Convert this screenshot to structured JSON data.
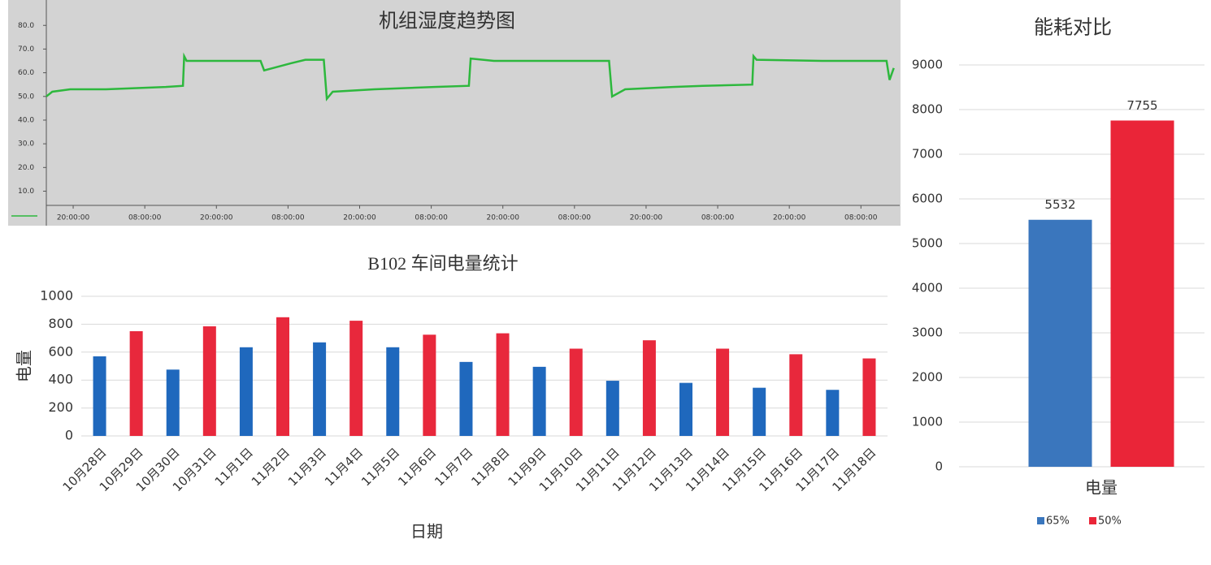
{
  "chart_data": [
    {
      "type": "line",
      "title": "机组湿度趋势图",
      "color": "#2db83d",
      "x": [
        0,
        1,
        4,
        10,
        20,
        22.9,
        23.1,
        23.5,
        30,
        35.9,
        36.5,
        38,
        41,
        43.4,
        46.5,
        47,
        48,
        55,
        65,
        70.8,
        71.1,
        75,
        85,
        94.3,
        94.8,
        97,
        105,
        110,
        118.3,
        118.5,
        119,
        130,
        140.8,
        141.3,
        142
      ],
      "values": [
        50,
        52,
        53,
        53,
        54,
        54.5,
        67,
        65,
        65,
        65,
        61,
        62,
        64,
        65.5,
        65.5,
        49,
        52,
        53,
        54,
        54.5,
        66,
        65,
        65,
        65,
        50,
        53,
        54,
        54.5,
        55,
        67,
        65.5,
        65,
        65,
        57,
        62
      ],
      "xlim": [
        0,
        143
      ],
      "xticks": [
        {
          "value": 4.5,
          "label": "20:00:00"
        },
        {
          "value": 16.5,
          "label": "08:00:00"
        },
        {
          "value": 28.5,
          "label": "20:00:00"
        },
        {
          "value": 40.5,
          "label": "08:00:00"
        },
        {
          "value": 52.5,
          "label": "20:00:00"
        },
        {
          "value": 64.5,
          "label": "08:00:00"
        },
        {
          "value": 76.5,
          "label": "20:00:00"
        },
        {
          "value": 88.5,
          "label": "08:00:00"
        },
        {
          "value": 100.5,
          "label": "20:00:00"
        },
        {
          "value": 112.5,
          "label": "08:00:00"
        },
        {
          "value": 124.5,
          "label": "20:00:00"
        },
        {
          "value": 136.5,
          "label": "08:00:00"
        }
      ],
      "ylim": [
        4,
        89
      ],
      "yticks": [
        {
          "value": 10,
          "label": "10.0"
        },
        {
          "value": 20,
          "label": "20.0"
        },
        {
          "value": 30,
          "label": "30.0"
        },
        {
          "value": 40,
          "label": "40.0"
        },
        {
          "value": 50,
          "label": "50.0"
        },
        {
          "value": 60,
          "label": "60.0"
        },
        {
          "value": 70,
          "label": "70.0"
        },
        {
          "value": 80,
          "label": "80.0"
        }
      ]
    },
    {
      "type": "bar",
      "title": "B102 车间电量统计",
      "xlabel": "日期",
      "ylabel": "电量",
      "categories": [
        "10月28日",
        "10月29日",
        "10月30日",
        "10月31日",
        "11月1日",
        "11月2日",
        "11月3日",
        "11月4日",
        "11月5日",
        "11月6日",
        "11月7日",
        "11月8日",
        "11月9日",
        "11月10日",
        "11月11日",
        "11月12日",
        "11月13日",
        "11月14日",
        "11月15日",
        "11月16日",
        "11月17日",
        "11月18日"
      ],
      "values": [
        570,
        750,
        475,
        785,
        635,
        850,
        670,
        825,
        635,
        725,
        530,
        735,
        495,
        625,
        395,
        685,
        380,
        625,
        345,
        585,
        330,
        555
      ],
      "colors": [
        "#1f68bd",
        "#e8283c"
      ],
      "ylim": [
        0,
        1000
      ],
      "yticks": [
        0,
        200,
        400,
        600,
        800,
        1000
      ],
      "grid": true
    },
    {
      "type": "grouped-bar",
      "title": "能耗对比",
      "categories": [
        "电量"
      ],
      "series": [
        {
          "name": "65%",
          "color": "#3a76bd",
          "values": [
            5532
          ]
        },
        {
          "name": "50%",
          "color": "#ea2538",
          "values": [
            7755
          ]
        }
      ],
      "ylim": [
        0,
        9000
      ],
      "yticks": [
        0,
        1000,
        2000,
        3000,
        4000,
        5000,
        6000,
        7000,
        8000,
        9000
      ],
      "grid": true,
      "legend": "bottom"
    }
  ]
}
